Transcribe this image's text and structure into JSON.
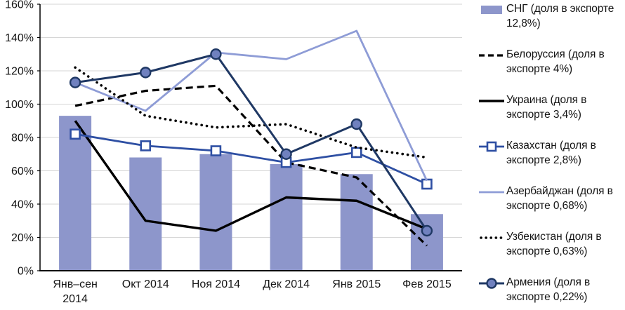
{
  "chart_data": {
    "type": "combo-bar-line",
    "title": "",
    "categories": [
      "Янв–сен 2014",
      "Окт 2014",
      "Ноя 2014",
      "Дек 2014",
      "Янв 2015",
      "Фев 2015"
    ],
    "y_axis": {
      "min": 0,
      "max": 160,
      "step": 20,
      "unit": "%",
      "tick_labels": [
        "0%",
        "20%",
        "40%",
        "60%",
        "80%",
        "100%",
        "120%",
        "140%",
        "160%"
      ]
    },
    "grid": true,
    "legend_position": "right",
    "series": [
      {
        "id": "sng",
        "name": "СНГ (доля в экспорте 12,8%)",
        "type": "bar",
        "color": "#8d96cb",
        "values": [
          93,
          68,
          70,
          64,
          58,
          34
        ]
      },
      {
        "id": "belorussia",
        "name": "Белоруссия (доля в экспорте 4%)",
        "type": "line",
        "line_style": "dashed",
        "color": "#000000",
        "values": [
          99,
          108,
          111,
          65,
          56,
          15
        ]
      },
      {
        "id": "ukraina",
        "name": "Украина (доля в экспорте 3,4%)",
        "type": "line",
        "line_style": "solid",
        "color": "#000000",
        "values": [
          90,
          30,
          24,
          44,
          42,
          25
        ]
      },
      {
        "id": "kazakhstan",
        "name": "Казахстан (доля в экспорте 2,8%)",
        "type": "line",
        "line_style": "solid",
        "marker": "square",
        "marker_fill": "#ffffff",
        "color": "#2e4fa3",
        "values": [
          82,
          75,
          72,
          65,
          71,
          52
        ]
      },
      {
        "id": "azerbaijan",
        "name": "Азербайджан (доля в экспорте 0,68%)",
        "type": "line",
        "line_style": "solid",
        "color": "#8e9cd6",
        "values": [
          113,
          96,
          131,
          127,
          144,
          54
        ]
      },
      {
        "id": "uzbekistan",
        "name": "Узбекистан (доля в экспорте 0,63%)",
        "type": "line",
        "line_style": "dotted",
        "color": "#000000",
        "values": [
          122,
          93,
          86,
          88,
          74,
          68
        ]
      },
      {
        "id": "armenia",
        "name": "Армения (доля в экспорте 0,22%)",
        "type": "line",
        "line_style": "solid",
        "marker": "circle",
        "marker_fill": "#7081bf",
        "color": "#1f3864",
        "values": [
          113,
          119,
          130,
          70,
          88,
          24
        ]
      }
    ]
  },
  "colors": {
    "grid": "#d6d6d6",
    "axis": "#000000",
    "text": "#141414"
  }
}
